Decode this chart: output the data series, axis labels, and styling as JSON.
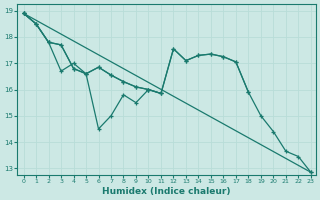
{
  "bg_color": "#cce8e4",
  "grid_color": "#b8ddd8",
  "line_color": "#1a7a6e",
  "xlabel": "Humidex (Indice chaleur)",
  "xlim_min": -0.5,
  "xlim_max": 23.4,
  "ylim_min": 12.75,
  "ylim_max": 19.25,
  "xticks": [
    0,
    1,
    2,
    3,
    4,
    5,
    6,
    7,
    8,
    9,
    10,
    11,
    12,
    13,
    14,
    15,
    16,
    17,
    18,
    19,
    20,
    21,
    22,
    23
  ],
  "yticks": [
    13,
    14,
    15,
    16,
    17,
    18,
    19
  ],
  "line1_x": [
    0,
    1,
    2,
    3,
    4,
    5,
    6,
    7,
    8,
    9,
    10,
    11
  ],
  "line1_y": [
    18.9,
    18.5,
    17.8,
    16.7,
    17.0,
    16.6,
    14.5,
    15.0,
    15.8,
    15.5,
    16.0,
    15.85
  ],
  "line2_x": [
    0,
    1,
    2,
    3,
    4,
    5,
    6,
    7,
    8,
    9,
    10,
    11,
    12,
    13,
    14,
    15,
    16,
    17,
    18
  ],
  "line2_y": [
    18.9,
    18.5,
    17.8,
    17.7,
    16.8,
    16.6,
    16.85,
    16.55,
    16.3,
    16.1,
    16.0,
    15.85,
    17.55,
    17.1,
    17.3,
    17.35,
    17.25,
    17.05,
    15.9
  ],
  "line3_x": [
    0,
    1,
    2,
    3,
    4,
    5,
    6,
    7,
    8,
    9,
    10,
    11,
    12,
    13,
    14,
    15,
    16,
    17,
    18,
    19,
    20,
    21,
    22,
    23
  ],
  "line3_y": [
    18.9,
    18.5,
    17.8,
    17.7,
    16.8,
    16.6,
    16.85,
    16.55,
    16.3,
    16.1,
    16.0,
    15.85,
    17.55,
    17.1,
    17.3,
    17.35,
    17.25,
    17.05,
    15.9,
    15.0,
    14.4,
    13.65,
    13.45,
    12.85
  ]
}
